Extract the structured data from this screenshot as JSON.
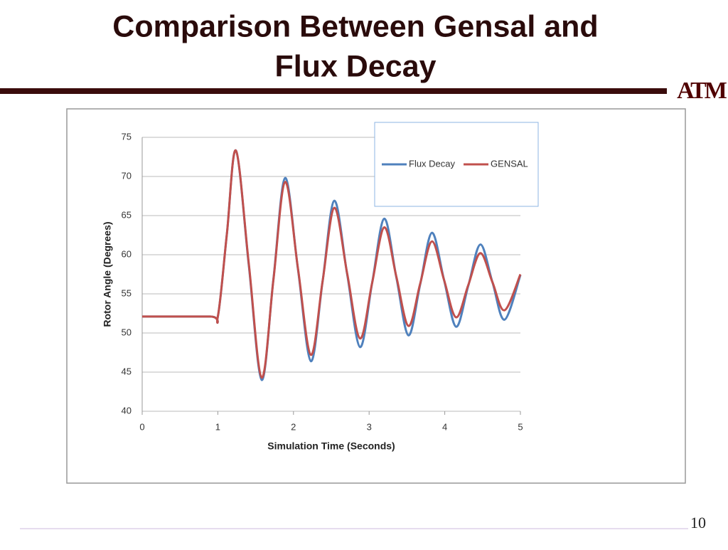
{
  "slide": {
    "title": [
      "Comparison Between Gensal and",
      "Flux Decay"
    ],
    "logo": "ATM",
    "page_number": "10"
  },
  "chart_data": {
    "type": "line",
    "x": [
      0,
      0.9,
      1.0,
      1.12,
      1.24,
      1.41,
      1.58,
      1.735,
      1.89,
      2.06,
      2.23,
      2.385,
      2.54,
      2.71,
      2.88,
      3.04,
      3.2,
      3.36,
      3.52,
      3.675,
      3.83,
      3.99,
      4.15,
      4.31,
      4.47,
      4.63,
      4.79,
      5
    ],
    "series": [
      {
        "name": "Flux Decay",
        "color": "#4f81bd",
        "values": [
          52.1,
          52.1,
          52.1,
          62.7,
          73.3,
          58.6,
          44.0,
          56.9,
          69.8,
          58.1,
          46.4,
          56.6,
          66.9,
          57.5,
          48.2,
          56.4,
          64.6,
          57.1,
          49.7,
          56.2,
          62.8,
          56.8,
          50.8,
          56.0,
          61.3,
          56.5,
          51.7,
          57.4
        ]
      },
      {
        "name": "GENSAL",
        "color": "#c0504d",
        "values": [
          52.1,
          52.1,
          52.1,
          62.7,
          73.3,
          58.8,
          44.3,
          56.8,
          69.3,
          58.2,
          47.2,
          56.6,
          66.0,
          57.6,
          49.3,
          56.4,
          63.5,
          57.2,
          50.9,
          56.3,
          61.7,
          56.8,
          52.0,
          56.1,
          60.2,
          56.5,
          52.9,
          57.5
        ]
      }
    ],
    "xlim": [
      0,
      5
    ],
    "xticks": [
      0,
      1,
      2,
      3,
      4,
      5
    ],
    "ylim": [
      40,
      75
    ],
    "yticks": [
      40,
      45,
      50,
      55,
      60,
      65,
      70,
      75
    ],
    "xlabel": "Simulation Time (Seconds)",
    "ylabel": "Rotor Angle (Degrees)",
    "grid": true,
    "legend": "upper-right"
  }
}
